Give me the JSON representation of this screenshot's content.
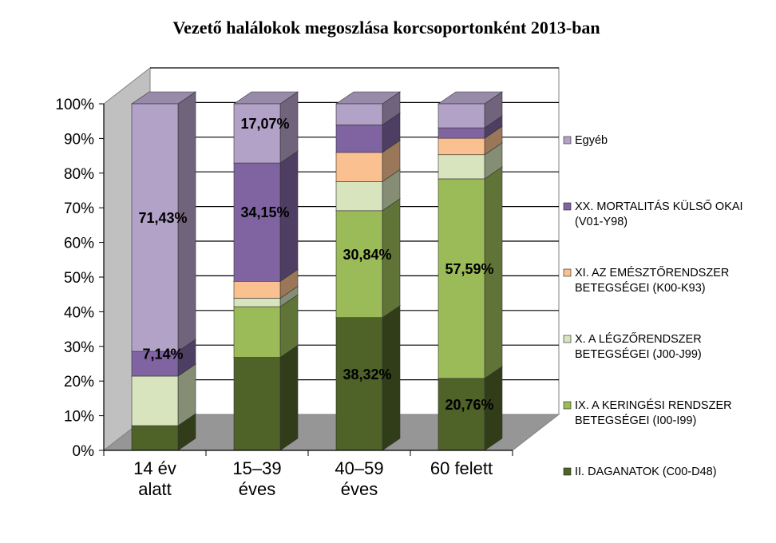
{
  "chart_data": {
    "type": "bar",
    "stacked": "percent",
    "three_d": true,
    "title": "Vezető halálokok megoszlása korcsoportonként 2013-ban",
    "categories": [
      [
        "14 év",
        "alatt"
      ],
      [
        "15–39",
        "éves"
      ],
      [
        "40–59",
        "éves"
      ],
      [
        "60 felett"
      ]
    ],
    "y_ticks": [
      "0%",
      "10%",
      "20%",
      "30%",
      "40%",
      "50%",
      "60%",
      "70%",
      "80%",
      "90%",
      "100%"
    ],
    "ylim": [
      0,
      100
    ],
    "legend_position": "right",
    "series": [
      {
        "name": "II. DAGANATOK (C00-D48)",
        "color": "#4F6228",
        "values": [
          7.14,
          26.83,
          38.32,
          20.76
        ],
        "labels": [
          "",
          "",
          "38,32%",
          "20,76%"
        ]
      },
      {
        "name": "IX. A KERINGÉSI RENDSZER BETEGSÉGEI (I00-I99)",
        "color": "#9BBB59",
        "values": [
          0,
          14.63,
          30.84,
          57.59
        ],
        "labels": [
          "",
          "",
          "30,84%",
          "57,59%"
        ]
      },
      {
        "name": "X. A LÉGZŐRENDSZER BETEGSÉGEI (J00-J99)",
        "color": "#D7E4BD",
        "values": [
          14.29,
          2.44,
          8.41,
          6.96
        ],
        "labels": [
          "",
          "",
          "",
          ""
        ]
      },
      {
        "name": "XI. AZ EMÉSZTŐRENDSZER BETEGSÉGEI (K00-K93)",
        "color": "#FAC090",
        "values": [
          0,
          4.88,
          8.41,
          4.75
        ],
        "labels": [
          "",
          "",
          "",
          ""
        ]
      },
      {
        "name": "XX. MORTALITÁS KÜLSŐ OKAI (V01-Y98)",
        "color": "#8064A2",
        "values": [
          7.14,
          34.15,
          7.94,
          3.01
        ],
        "labels": [
          "7,14%",
          "34,15%",
          "",
          ""
        ]
      },
      {
        "name": "Egyéb",
        "color": "#B3A2C7",
        "values": [
          71.43,
          17.07,
          6.08,
          6.93
        ],
        "labels": [
          "71,43%",
          "17,07%",
          "",
          ""
        ]
      }
    ],
    "legend_lines": [
      [
        "II. DAGANATOK (C00-D48)"
      ],
      [
        "IX. A KERINGÉSI RENDSZER",
        "BETEGSÉGEI (I00-I99)"
      ],
      [
        "X. A LÉGZŐRENDSZER",
        "BETEGSÉGEI (J00-J99)"
      ],
      [
        "XI. AZ EMÉSZTŐRENDSZER",
        "BETEGSÉGEI (K00-K93)"
      ],
      [
        "XX. MORTALITÁS KÜLSŐ OKAI",
        "(V01-Y98)"
      ],
      [
        "Egyéb"
      ]
    ]
  }
}
